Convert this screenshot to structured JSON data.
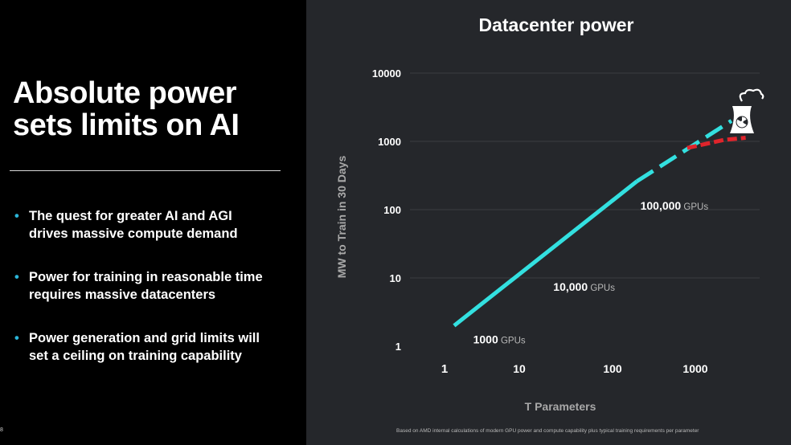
{
  "slide": {
    "title_line1": "Absolute power",
    "title_line2": "sets limits on AI",
    "bullets": [
      {
        "line1": "The quest for greater AI and AGI",
        "line2": "drives massive compute demand"
      },
      {
        "line1": "Power for training in reasonable time",
        "line2": "requires massive datacenters"
      },
      {
        "line1": "Power generation and grid limits will",
        "line2": "set a ceiling on training capability"
      }
    ],
    "page_number": "8",
    "footnote": "Based on AMD internal calculations of modern GPU power and compute capability plus typical training requirements per parameter",
    "accent_color": "#2bb5d8"
  },
  "chart_data": {
    "type": "line",
    "title": "Datacenter power",
    "xlabel": "T Parameters",
    "ylabel": "MW to Train in 30 Days",
    "x_scale": "log",
    "y_scale": "log",
    "x_ticks": [
      "1",
      "10",
      "100",
      "1000"
    ],
    "y_ticks": [
      "10000",
      "1000",
      "100",
      "10",
      "1"
    ],
    "ylim": [
      1,
      10000
    ],
    "grid": "horizontal",
    "series": [
      {
        "style": "solid",
        "color": "#33e0e0",
        "x": [
          1.3,
          200
        ],
        "y": [
          2,
          260
        ]
      },
      {
        "style": "dashed",
        "color": "#33e0e0",
        "x": [
          200,
          2700
        ],
        "y": [
          260,
          2000
        ]
      },
      {
        "style": "dashed",
        "color": "#e0242b",
        "x": [
          800,
          2200,
          4000
        ],
        "y": [
          800,
          1050,
          1130
        ]
      }
    ],
    "annotations": [
      {
        "value": "1000",
        "unit": "GPUs",
        "x": 2.2,
        "y": 1.1
      },
      {
        "value": "10,000",
        "unit": "GPUs",
        "x": 20,
        "y": 6.5
      },
      {
        "value": "100,000",
        "unit": "GPUs",
        "x": 220,
        "y": 100
      }
    ],
    "icon": "nuclear-cooling-tower-icon"
  }
}
